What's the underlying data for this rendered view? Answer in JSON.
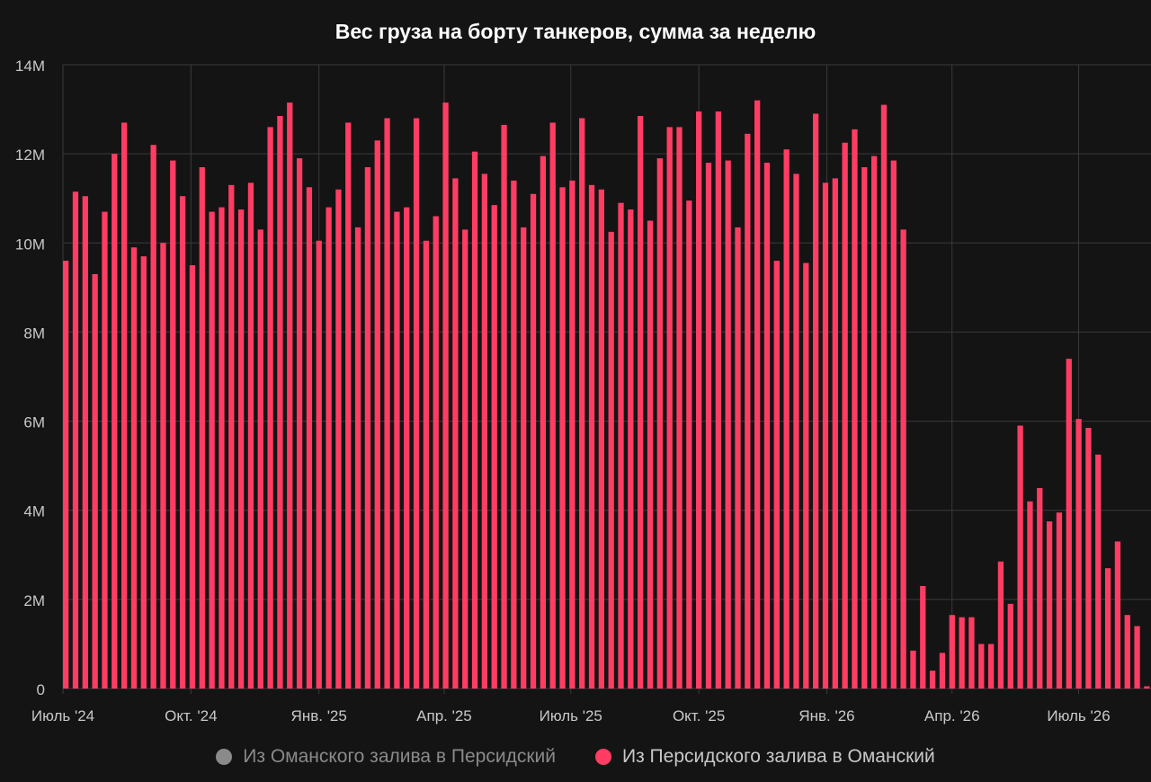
{
  "colors": {
    "background": "#141414",
    "grid": "#3a3a3a",
    "tick_text": "#c8c8c8",
    "bar": "#ff3d64"
  },
  "chart_data": {
    "type": "bar",
    "title": "Вес груза на борту танкеров, сумма за неделю",
    "xlabel": "",
    "ylabel": "",
    "ylim": [
      0,
      14000000
    ],
    "y_ticks": [
      {
        "value": 0,
        "label": "0"
      },
      {
        "value": 2000000,
        "label": "2M"
      },
      {
        "value": 4000000,
        "label": "4M"
      },
      {
        "value": 6000000,
        "label": "6M"
      },
      {
        "value": 8000000,
        "label": "8M"
      },
      {
        "value": 10000000,
        "label": "10M"
      },
      {
        "value": 12000000,
        "label": "12M"
      },
      {
        "value": 14000000,
        "label": "14M"
      }
    ],
    "x_ticks": [
      {
        "label": "Июль '24",
        "date": "2024-07-01"
      },
      {
        "label": "Окт. '24",
        "date": "2024-10-01"
      },
      {
        "label": "Янв. '25",
        "date": "2025-01-01"
      },
      {
        "label": "Апр. '25",
        "date": "2025-04-01"
      },
      {
        "label": "Июль '25",
        "date": "2025-07-01"
      },
      {
        "label": "Окт. '25",
        "date": "2025-10-01"
      },
      {
        "label": "Янв. '26",
        "date": "2026-01-01"
      },
      {
        "label": "Апр. '26",
        "date": "2026-04-01"
      },
      {
        "label": "Июль '26",
        "date": "2026-07-01"
      }
    ],
    "x_range": [
      "2024-07-01",
      "2026-08-22"
    ],
    "grid": true,
    "legend_position": "bottom",
    "legend": [
      {
        "name": "Из Оманского залива в Персидский",
        "color": "#8a8a8a",
        "active": false
      },
      {
        "name": "Из Персидского залива в Оманский",
        "color": "#ff3d64",
        "active": true
      }
    ],
    "series": [
      {
        "name": "Из Персидского залива в Оманский",
        "start_date": "2024-07-01",
        "week_step_days": 7,
        "values": [
          9600000,
          11150000,
          11050000,
          9300000,
          10700000,
          12000000,
          12700000,
          9900000,
          9700000,
          12200000,
          10000000,
          11850000,
          11050000,
          9500000,
          11700000,
          10700000,
          10800000,
          11300000,
          10750000,
          11350000,
          10300000,
          12600000,
          12850000,
          13150000,
          11900000,
          11250000,
          10050000,
          10800000,
          11200000,
          12700000,
          10350000,
          11700000,
          12300000,
          12800000,
          10700000,
          10800000,
          12800000,
          10050000,
          10600000,
          13150000,
          11450000,
          10300000,
          12050000,
          11550000,
          10850000,
          12650000,
          11400000,
          10350000,
          11100000,
          11950000,
          12700000,
          11250000,
          11400000,
          12800000,
          11300000,
          11200000,
          10250000,
          10900000,
          10750000,
          12850000,
          10500000,
          11900000,
          12600000,
          12600000,
          10950000,
          12950000,
          11800000,
          12950000,
          11850000,
          10350000,
          12450000,
          13200000,
          11800000,
          9600000,
          12100000,
          11550000,
          9550000,
          12900000,
          11350000,
          11450000,
          12250000,
          12550000,
          11700000,
          11950000,
          13100000,
          11850000,
          10300000,
          850000,
          2300000,
          400000,
          800000,
          1650000,
          1600000,
          1600000,
          1000000,
          1000000,
          2850000,
          1900000,
          5900000,
          4200000,
          4500000,
          3750000,
          3950000,
          7400000,
          6050000,
          5850000,
          5250000,
          2700000,
          3300000,
          1650000,
          1400000,
          50000
        ]
      }
    ]
  }
}
